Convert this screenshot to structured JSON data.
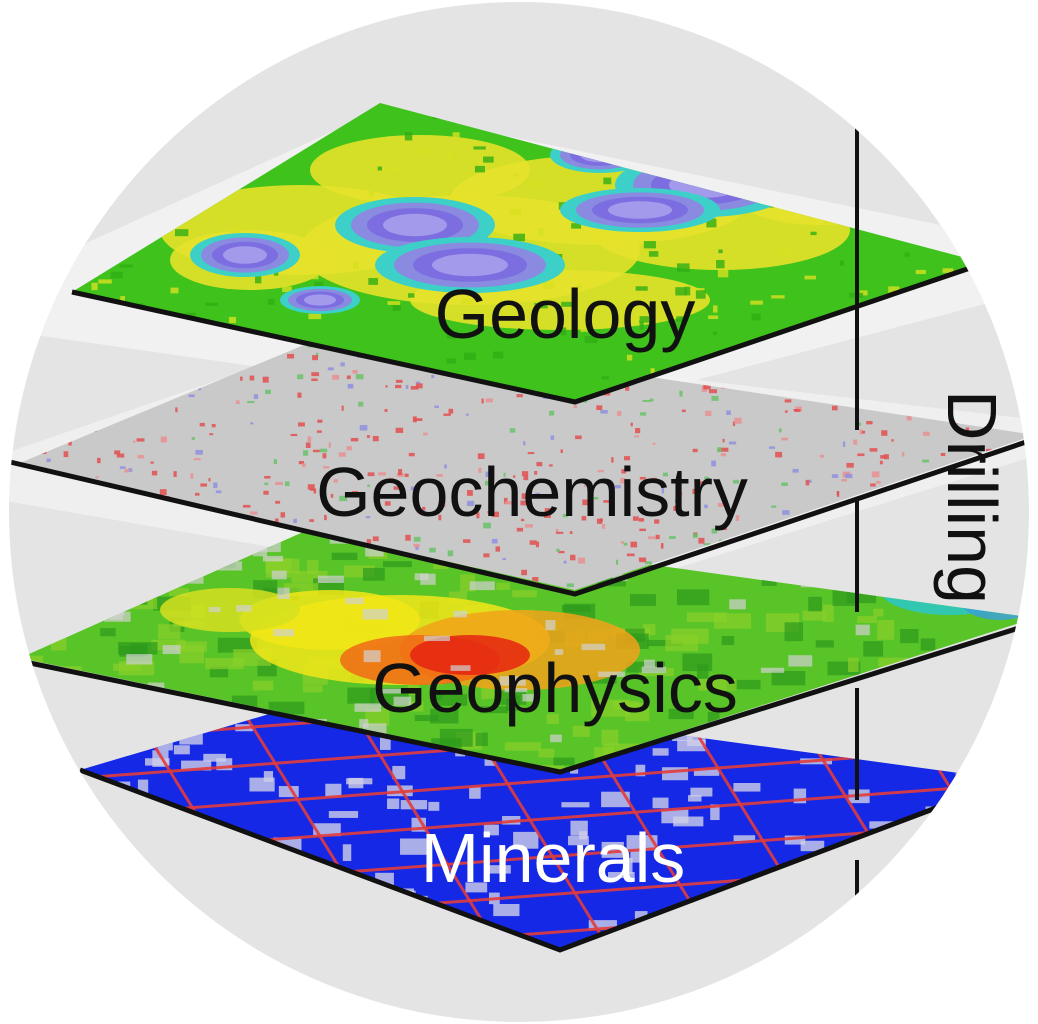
{
  "layers": [
    {
      "id": "geology",
      "label": "Geology",
      "label_color": "#111111",
      "base_color": "#3fc21c"
    },
    {
      "id": "geochemistry",
      "label": "Geochemistry",
      "label_color": "#111111",
      "base_color": "#c9c9c9"
    },
    {
      "id": "geophysics",
      "label": "Geophysics",
      "label_color": "#111111",
      "base_color": "#58c428"
    },
    {
      "id": "minerals",
      "label": "Minerals",
      "label_color": "#ffffff",
      "base_color": "#1428e6"
    }
  ],
  "drilling": {
    "label": "Drilling",
    "color": "#111111"
  },
  "colors": {
    "background_circle": "#e4e4e4",
    "outline": "#111111"
  }
}
